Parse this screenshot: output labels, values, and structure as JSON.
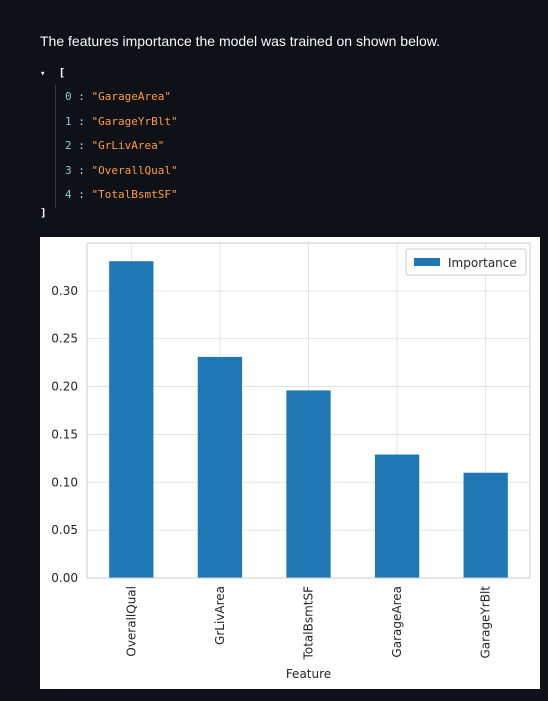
{
  "intro_text": "The features importance the model was trained on shown below.",
  "json_view": {
    "open_bracket": "[",
    "close_bracket": "]",
    "items": [
      {
        "index": "0",
        "value": "\"GarageArea\""
      },
      {
        "index": "1",
        "value": "\"GarageYrBlt\""
      },
      {
        "index": "2",
        "value": "\"GrLivArea\""
      },
      {
        "index": "3",
        "value": "\"OverallQual\""
      },
      {
        "index": "4",
        "value": "\"TotalBsmtSF\""
      }
    ]
  },
  "chart_data": {
    "type": "bar",
    "categories": [
      "OverallQual",
      "GrLivArea",
      "TotalBsmtSF",
      "GarageArea",
      "GarageYrBlt"
    ],
    "series": [
      {
        "name": "Importance",
        "values": [
          0.331,
          0.231,
          0.196,
          0.129,
          0.11
        ]
      }
    ],
    "xlabel": "Feature",
    "ylabel": "",
    "ylim": [
      0,
      0.35
    ],
    "yticks": [
      0.0,
      0.05,
      0.1,
      0.15,
      0.2,
      0.25,
      0.3
    ],
    "ytick_labels": [
      "0.00",
      "0.05",
      "0.10",
      "0.15",
      "0.20",
      "0.25",
      "0.30"
    ],
    "grid": true,
    "legend_position": "top-right",
    "bar_color": "#1f77b4"
  }
}
